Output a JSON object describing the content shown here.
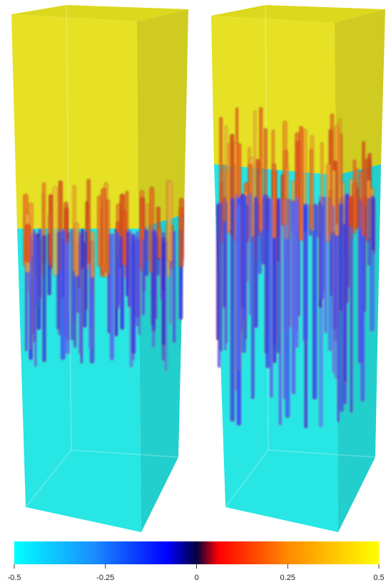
{
  "colorbar": {
    "ticks": [
      {
        "value": -0.5,
        "label": "-0.5"
      },
      {
        "value": -0.25,
        "label": "-0.25"
      },
      {
        "value": 0,
        "label": "0"
      },
      {
        "value": 0.25,
        "label": "0.25"
      },
      {
        "value": 0.5,
        "label": "0.5"
      }
    ],
    "min": -0.5,
    "max": 0.5,
    "stops": [
      "#00ffff",
      "#1a8cff",
      "#0000ff",
      "#050040",
      "#ff0000",
      "#ff8a00",
      "#ffff00"
    ]
  },
  "panels": [
    {
      "id": "left",
      "top_color": "#e5e022",
      "bottom_color": "#25e3e3"
    },
    {
      "id": "right",
      "top_color": "#e5e022",
      "bottom_color": "#25e3e3"
    }
  ]
}
